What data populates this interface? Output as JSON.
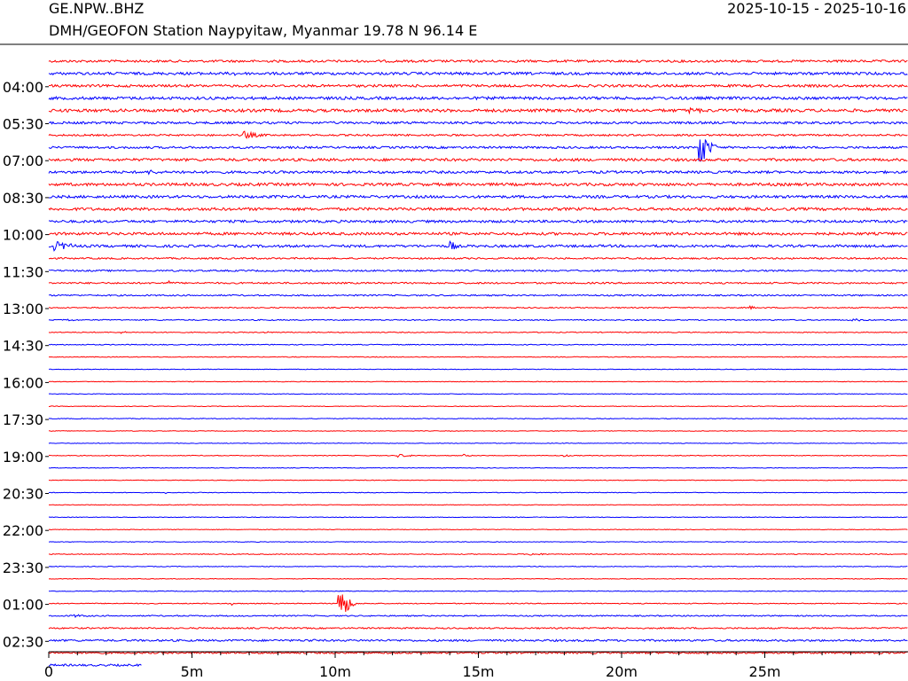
{
  "header": {
    "station_code": "GE.NPW..BHZ",
    "station_description": "DMH/GEOFON Station Naypyitaw, Myanmar  19.78 N 96.14 E",
    "date_range": "2025-10-15 - 2025-10-16"
  },
  "colors": {
    "red": "#ff0000",
    "blue": "#0000ff",
    "axis": "#000000"
  },
  "chart_data": {
    "type": "line",
    "title": "",
    "xlabel": "",
    "ylabel": "",
    "x_range_minutes": [
      0,
      30
    ],
    "x_ticks": [
      "0",
      "5m",
      "10m",
      "15m",
      "20m",
      "25m"
    ],
    "x_tick_values": [
      0,
      5,
      10,
      15,
      20,
      25
    ],
    "minor_tick_interval_minutes": 1,
    "row_interval_minutes": 30,
    "trace_colors": [
      "red",
      "blue"
    ],
    "y_tick_labels": [
      "04:00",
      "05:30",
      "07:00",
      "08:30",
      "10:00",
      "11:30",
      "13:00",
      "14:30",
      "16:00",
      "17:30",
      "19:00",
      "20:30",
      "22:00",
      "23:30",
      "01:00",
      "02:30"
    ],
    "rows": [
      {
        "noise": 1.3,
        "events": []
      },
      {
        "noise": 1.5,
        "events": [
          {
            "t": 6.5,
            "amp": 3,
            "dur": 0.4
          },
          {
            "t": 4.8,
            "amp": 2,
            "dur": 0.3
          }
        ]
      },
      {
        "noise": 1.4,
        "events": []
      },
      {
        "noise": 1.6,
        "events": []
      },
      {
        "noise": 1.7,
        "events": [
          {
            "t": 22.3,
            "amp": 4,
            "dur": 1.8
          }
        ]
      },
      {
        "noise": 1.3,
        "events": []
      },
      {
        "noise": 1.0,
        "events": [
          {
            "t": 6.8,
            "amp": 5,
            "dur": 1.2
          }
        ]
      },
      {
        "noise": 1.2,
        "events": [
          {
            "t": 22.7,
            "amp": 28,
            "dur": 0.6
          }
        ]
      },
      {
        "noise": 1.5,
        "events": []
      },
      {
        "noise": 1.4,
        "events": [
          {
            "t": 3.5,
            "amp": 3,
            "dur": 1.5
          },
          {
            "t": 4.6,
            "amp": 4,
            "dur": 0.4
          }
        ]
      },
      {
        "noise": 1.6,
        "events": []
      },
      {
        "noise": 1.5,
        "events": []
      },
      {
        "noise": 1.6,
        "events": []
      },
      {
        "noise": 1.4,
        "events": []
      },
      {
        "noise": 1.5,
        "events": []
      },
      {
        "noise": 1.4,
        "events": [
          {
            "t": 0.2,
            "amp": 6,
            "dur": 1.5
          },
          {
            "t": 14.0,
            "amp": 9,
            "dur": 0.4
          }
        ]
      },
      {
        "noise": 0.9,
        "events": [
          {
            "t": 24.5,
            "amp": 2,
            "dur": 0.3
          }
        ]
      },
      {
        "noise": 0.9,
        "events": []
      },
      {
        "noise": 0.9,
        "events": [
          {
            "t": 4.2,
            "amp": 3,
            "dur": 0.3
          }
        ]
      },
      {
        "noise": 0.8,
        "events": []
      },
      {
        "noise": 0.6,
        "events": [
          {
            "t": 24.5,
            "amp": 2,
            "dur": 0.5
          }
        ]
      },
      {
        "noise": 0.6,
        "events": [
          {
            "t": 0.5,
            "amp": 2,
            "dur": 1.0
          },
          {
            "t": 28.0,
            "amp": 2,
            "dur": 1.2
          }
        ]
      },
      {
        "noise": 0.5,
        "events": [
          {
            "t": 2.5,
            "amp": 1.5,
            "dur": 0.8
          },
          {
            "t": 7.5,
            "amp": 1.5,
            "dur": 0.6
          }
        ]
      },
      {
        "noise": 0.5,
        "events": []
      },
      {
        "noise": 0.4,
        "events": []
      },
      {
        "noise": 0.35,
        "events": []
      },
      {
        "noise": 0.35,
        "events": []
      },
      {
        "noise": 0.35,
        "events": []
      },
      {
        "noise": 0.35,
        "events": []
      },
      {
        "noise": 0.4,
        "events": [
          {
            "t": 7.6,
            "amp": 1.5,
            "dur": 0.2
          }
        ]
      },
      {
        "noise": 0.35,
        "events": []
      },
      {
        "noise": 0.35,
        "events": []
      },
      {
        "noise": 0.4,
        "events": [
          {
            "t": 12.2,
            "amp": 2,
            "dur": 1.2
          },
          {
            "t": 14.5,
            "amp": 1.5,
            "dur": 0.6
          },
          {
            "t": 18.0,
            "amp": 1.5,
            "dur": 0.5
          }
        ]
      },
      {
        "noise": 0.35,
        "events": []
      },
      {
        "noise": 0.35,
        "events": []
      },
      {
        "noise": 0.35,
        "events": [
          {
            "t": 4.1,
            "amp": 1.2,
            "dur": 0.2
          }
        ]
      },
      {
        "noise": 0.35,
        "events": []
      },
      {
        "noise": 0.35,
        "events": []
      },
      {
        "noise": 0.35,
        "events": []
      },
      {
        "noise": 0.35,
        "events": []
      },
      {
        "noise": 0.45,
        "events": [
          {
            "t": 16.8,
            "amp": 1.5,
            "dur": 1.5
          }
        ]
      },
      {
        "noise": 0.4,
        "events": []
      },
      {
        "noise": 0.35,
        "events": []
      },
      {
        "noise": 0.4,
        "events": [
          {
            "t": 8.8,
            "amp": 1.2,
            "dur": 0.4
          }
        ]
      },
      {
        "noise": 0.5,
        "events": [
          {
            "t": 6.4,
            "amp": 2,
            "dur": 0.2
          },
          {
            "t": 10.1,
            "amp": 28,
            "dur": 0.6
          }
        ]
      },
      {
        "noise": 0.7,
        "events": [
          {
            "t": 0.8,
            "amp": 2,
            "dur": 1.5
          },
          {
            "t": 14.5,
            "amp": 1.5,
            "dur": 0.5
          }
        ]
      },
      {
        "noise": 0.8,
        "events": []
      },
      {
        "noise": 1.1,
        "events": [
          {
            "t": 9.0,
            "amp": 2,
            "dur": 1.5
          }
        ]
      },
      {
        "noise": 1.0,
        "events": [
          {
            "t": 1.6,
            "amp": 2,
            "dur": 0.8
          }
        ]
      },
      {
        "noise": 1.1,
        "events": [],
        "end_minutes": 3.25
      }
    ]
  }
}
